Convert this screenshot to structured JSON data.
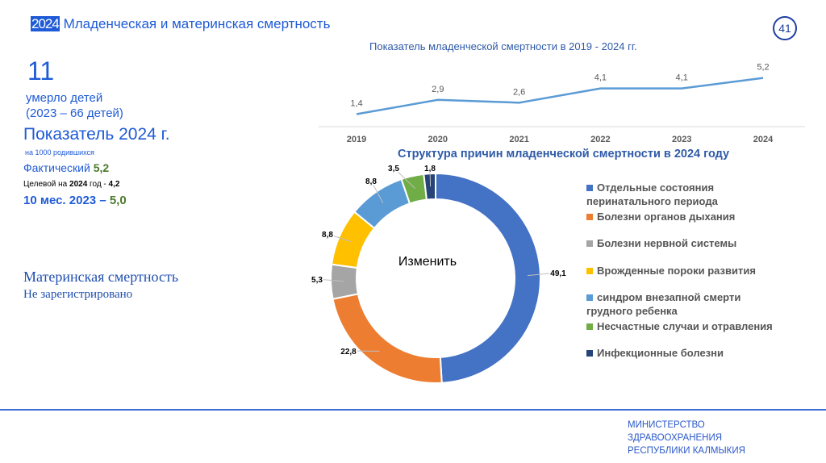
{
  "header": {
    "year": "2024",
    "title": "Младенческая и материнская смертность",
    "page": "41"
  },
  "left": {
    "deaths": "11",
    "deaths_label": "умерло детей",
    "deaths_prev": "(2023 – 66 детей)",
    "indicator_title": "Показатель 2024 г.",
    "per": "на 1000 родившихся",
    "actual_label": "Фактический",
    "actual_value": "5,2",
    "target_label": "Целевой на",
    "target_year": "2024",
    "target_suffix": "год -",
    "target_value": "4,2",
    "prev_label": "10 мес. 2023",
    "prev_dash": "–",
    "prev_value": "5,0",
    "maternal_title": "Материнская смертность",
    "maternal_status": "Не зарегистрировано"
  },
  "footer": {
    "line1": "МИНИСТЕРСТВО",
    "line2": "ЗДРАВООХРАНЕНИЯ",
    "line3": "РЕСПУБЛИКИ КАЛМЫКИЯ"
  },
  "chart_data": [
    {
      "type": "line",
      "title": "Показатель младенческой смертности в 2019 - 2024 гг.",
      "categories": [
        "2019",
        "2020",
        "2021",
        "2022",
        "2023",
        "2024"
      ],
      "values": [
        1.4,
        2.9,
        2.6,
        4.1,
        4.1,
        5.2
      ],
      "labels": [
        "1,4",
        "2,9",
        "2,6",
        "4,1",
        "4,1",
        "5,2"
      ],
      "color": "#5b9bd5"
    },
    {
      "type": "pie",
      "title": "Структура причин младенческой смертности в  2024 году",
      "center_label": "Изменить",
      "legend": "right",
      "slices": [
        {
          "name": "Отдельные состояния перинатального периода",
          "value": 49.1,
          "label": "49,1",
          "color": "#4472c4"
        },
        {
          "name": "Болезни органов дыхания",
          "value": 22.8,
          "label": "22,8",
          "color": "#ed7d31"
        },
        {
          "name": "Болезни нервной системы",
          "value": 5.3,
          "label": "5,3",
          "color": "#a5a5a5"
        },
        {
          "name": "Врожденные пороки развития",
          "value": 8.8,
          "label": "8,8",
          "color": "#ffc000"
        },
        {
          "name": "синдром внезапной смерти грудного ребенка",
          "value": 8.8,
          "label": "8,8",
          "color": "#5b9bd5"
        },
        {
          "name": "Несчастные случаи и отравления",
          "value": 3.5,
          "label": "3,5",
          "color": "#70ad47"
        },
        {
          "name": "Инфекционные болезни",
          "value": 1.8,
          "label": "1,8",
          "color": "#264478"
        }
      ]
    }
  ]
}
